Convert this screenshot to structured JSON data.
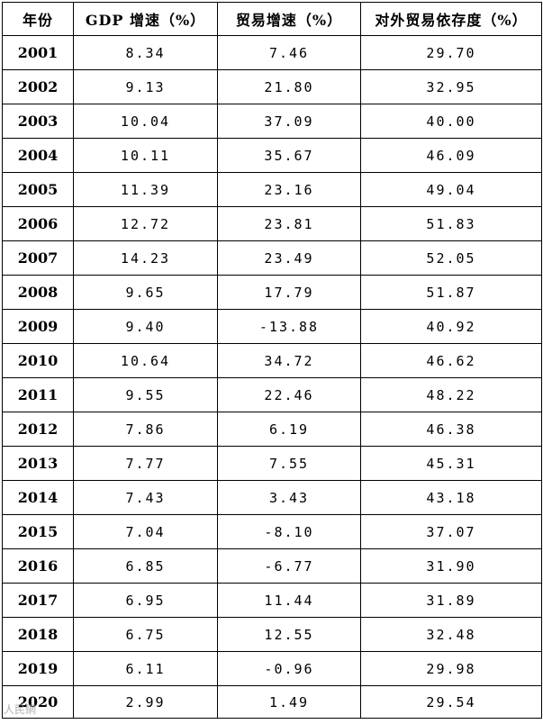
{
  "headers": {
    "year": "年份",
    "gdp": "GDP 增速（%）",
    "trade": "贸易增速（%）",
    "dependence": "对外贸易依存度（%）"
  },
  "rows": [
    {
      "year": "2001",
      "gdp": "8.34",
      "trade": "7.46",
      "dependence": "29.70"
    },
    {
      "year": "2002",
      "gdp": "9.13",
      "trade": "21.80",
      "dependence": "32.95"
    },
    {
      "year": "2003",
      "gdp": "10.04",
      "trade": "37.09",
      "dependence": "40.00"
    },
    {
      "year": "2004",
      "gdp": "10.11",
      "trade": "35.67",
      "dependence": "46.09"
    },
    {
      "year": "2005",
      "gdp": "11.39",
      "trade": "23.16",
      "dependence": "49.04"
    },
    {
      "year": "2006",
      "gdp": "12.72",
      "trade": "23.81",
      "dependence": "51.83"
    },
    {
      "year": "2007",
      "gdp": "14.23",
      "trade": "23.49",
      "dependence": "52.05"
    },
    {
      "year": "2008",
      "gdp": "9.65",
      "trade": "17.79",
      "dependence": "51.87"
    },
    {
      "year": "2009",
      "gdp": "9.40",
      "trade": "-13.88",
      "dependence": "40.92"
    },
    {
      "year": "2010",
      "gdp": "10.64",
      "trade": "34.72",
      "dependence": "46.62"
    },
    {
      "year": "2011",
      "gdp": "9.55",
      "trade": "22.46",
      "dependence": "48.22"
    },
    {
      "year": "2012",
      "gdp": "7.86",
      "trade": "6.19",
      "dependence": "46.38"
    },
    {
      "year": "2013",
      "gdp": "7.77",
      "trade": "7.55",
      "dependence": "45.31"
    },
    {
      "year": "2014",
      "gdp": "7.43",
      "trade": "3.43",
      "dependence": "43.18"
    },
    {
      "year": "2015",
      "gdp": "7.04",
      "trade": "-8.10",
      "dependence": "37.07"
    },
    {
      "year": "2016",
      "gdp": "6.85",
      "trade": "-6.77",
      "dependence": "31.90"
    },
    {
      "year": "2017",
      "gdp": "6.95",
      "trade": "11.44",
      "dependence": "31.89"
    },
    {
      "year": "2018",
      "gdp": "6.75",
      "trade": "12.55",
      "dependence": "32.48"
    },
    {
      "year": "2019",
      "gdp": "6.11",
      "trade": "-0.96",
      "dependence": "29.98"
    },
    {
      "year": "2020",
      "gdp": "2.99",
      "trade": "1.49",
      "dependence": "29.54"
    }
  ],
  "watermark": "人民網"
}
